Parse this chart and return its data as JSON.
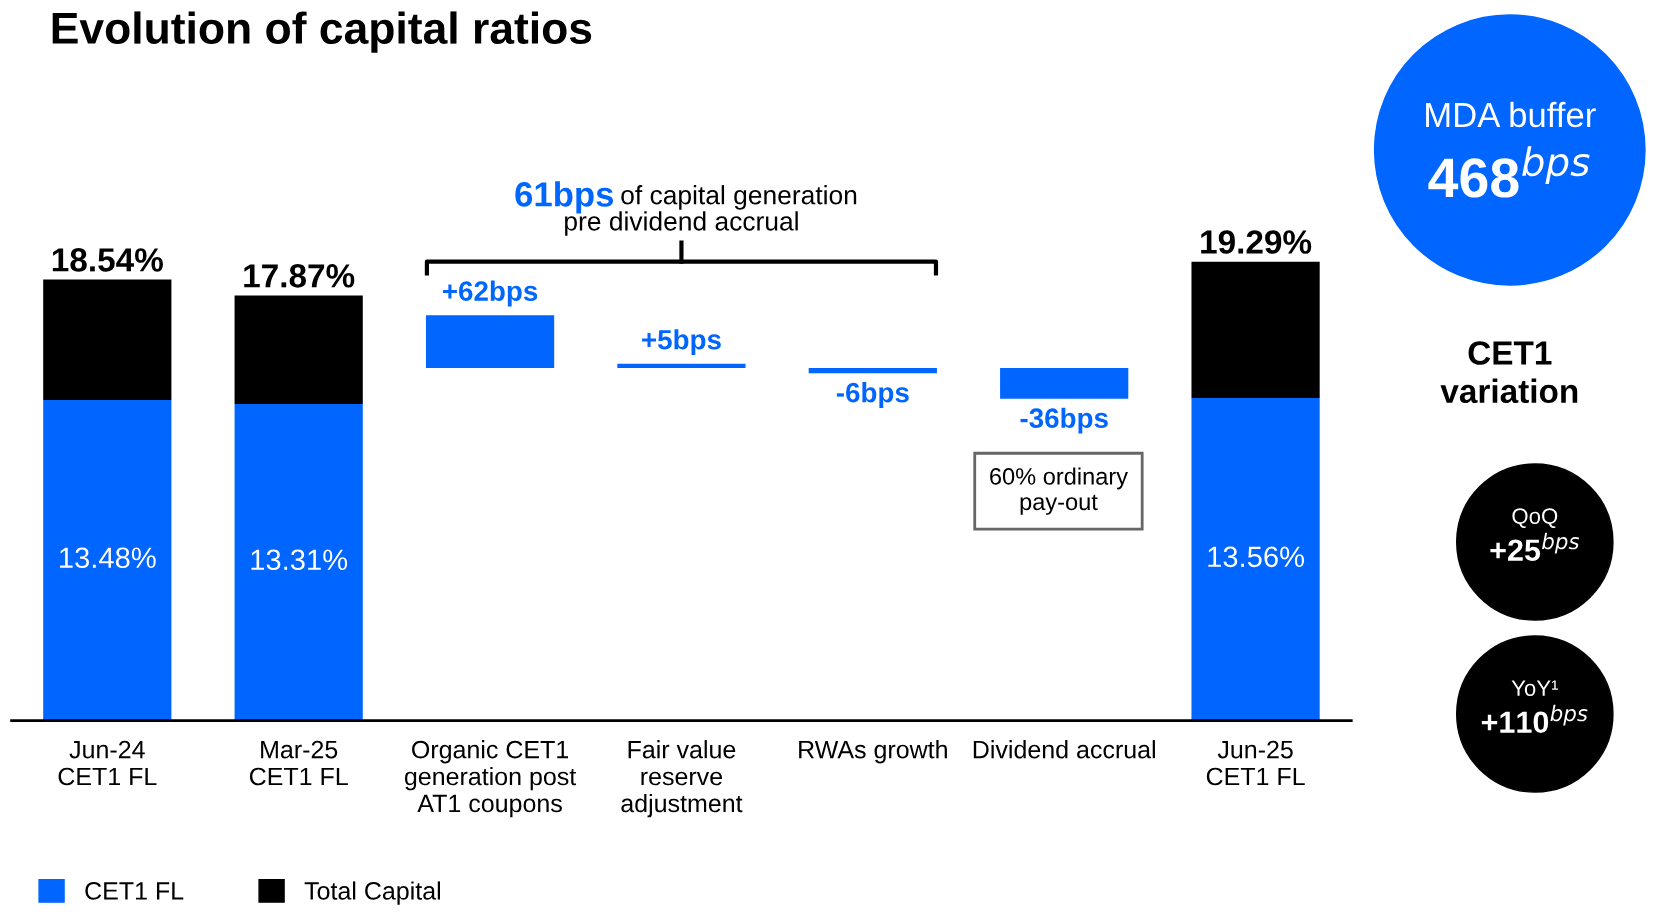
{
  "chart_data": {
    "type": "bar",
    "title": "Evolution of capital ratios",
    "categories": [
      "Jun-24\nCET1 FL",
      "Mar-25\nCET1 FL",
      "Organic CET1\ngeneration post\nAT1 coupons",
      "Fair value\nreserve\nadjustment",
      "RWAs growth",
      "Dividend accrual",
      "Jun-25\nCET1 FL"
    ],
    "stacked": true,
    "series": [
      {
        "name": "CET1 FL",
        "color": "#0066ff",
        "values": [
          13.48,
          13.31,
          null,
          null,
          null,
          null,
          13.56
        ],
        "value_labels": [
          "13.48%",
          "13.31%",
          null,
          null,
          null,
          null,
          "13.56%"
        ]
      },
      {
        "name": "Total Capital",
        "color": "#000000",
        "values": [
          5.06,
          4.56,
          null,
          null,
          null,
          null,
          5.73
        ]
      },
      {
        "color": "#0066ff",
        "axis": "y2",
        "values": [
          null,
          null,
          62,
          5,
          -6,
          -36,
          null
        ],
        "value_labels": [
          null,
          null,
          "+62bps",
          "+5bps",
          "-6bps",
          "-36bps",
          null
        ]
      }
    ],
    "totals": [
      "18.54%",
      "17.87%",
      null,
      null,
      null,
      null,
      "19.29%"
    ],
    "legend": "bottom left",
    "annotations": [
      "61bps",
      "of capital generation",
      "pre dividend accrual",
      "60% ordinary\npay-out",
      "MDA buffer",
      "468$^{bps}$",
      "CET1\nvariation",
      "QoQ",
      "+25$^{bps}$",
      "YoY¹",
      "+110$^{bps}$"
    ]
  }
}
